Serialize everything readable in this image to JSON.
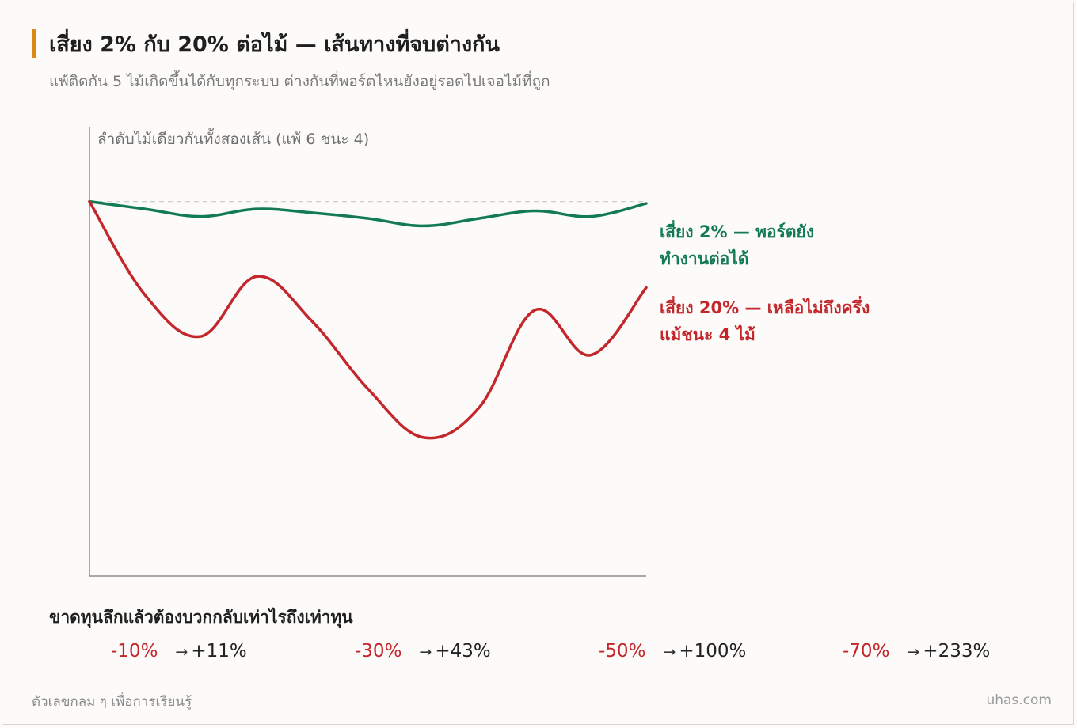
{
  "header": {
    "title": "เสี่ยง 2% กับ 20% ต่อไม้ — เส้นทางที่จบต่างกัน",
    "subtitle": "แพ้ติดกัน 5 ไม้เกิดขึ้นได้กับทุกระบบ ต่างกันที่พอร์ตไหนยังอยู่รอดไปเจอไม้ที่ถูก"
  },
  "colors": {
    "accent": "#d98a18",
    "green": "#127a55",
    "red": "#c3262b",
    "axis": "#8c8c8c",
    "baseline": "#c8c8c8"
  },
  "chart_data": {
    "type": "line",
    "ylabel": "ลำดับไม้เดียวกันทั้งสองเส้น (แพ้ 6 ชนะ 4)",
    "grid": false,
    "legend_placement": "right",
    "x": [
      0,
      1,
      2,
      3,
      4,
      5,
      6,
      7,
      8,
      9,
      10
    ],
    "ylim": [
      0,
      120
    ],
    "baseline": 100,
    "series": [
      {
        "name": "เสี่ยง 2% — พอร์ตยังทำงานต่อได้",
        "color": "#127a55",
        "values": [
          100,
          98,
          96,
          98,
          97,
          95.5,
          93.5,
          95.5,
          97.5,
          96,
          99.5
        ]
      },
      {
        "name": "เสี่ยง 20% — เหลือไม่ถึงครึ่งแม้ชนะ 4 ไม้",
        "color": "#c3262b",
        "values": [
          100,
          75,
          64,
          80,
          68,
          50,
          37,
          45,
          71,
          59,
          77
        ]
      }
    ],
    "labels": {
      "green_line1": "เสี่ยง 2% — พอร์ตยัง",
      "green_line2": "ทำงานต่อได้",
      "red_line1": "เสี่ยง 20% — เหลือไม่ถึงครึ่ง",
      "red_line2": "แม้ชนะ 4 ไม้"
    }
  },
  "recovery": {
    "title": "ขาดทุนลึกแล้วต้องบวกกลับเท่าไรถึงเท่าทุน",
    "arrow": "→",
    "items": [
      {
        "loss": "-10%",
        "gain": "+11%"
      },
      {
        "loss": "-30%",
        "gain": "+43%"
      },
      {
        "loss": "-50%",
        "gain": "+100%"
      },
      {
        "loss": "-70%",
        "gain": "+233%"
      }
    ]
  },
  "footer": {
    "note": "ตัวเลขกลม ๆ เพื่อการเรียนรู้",
    "brand": "uhas.com"
  }
}
